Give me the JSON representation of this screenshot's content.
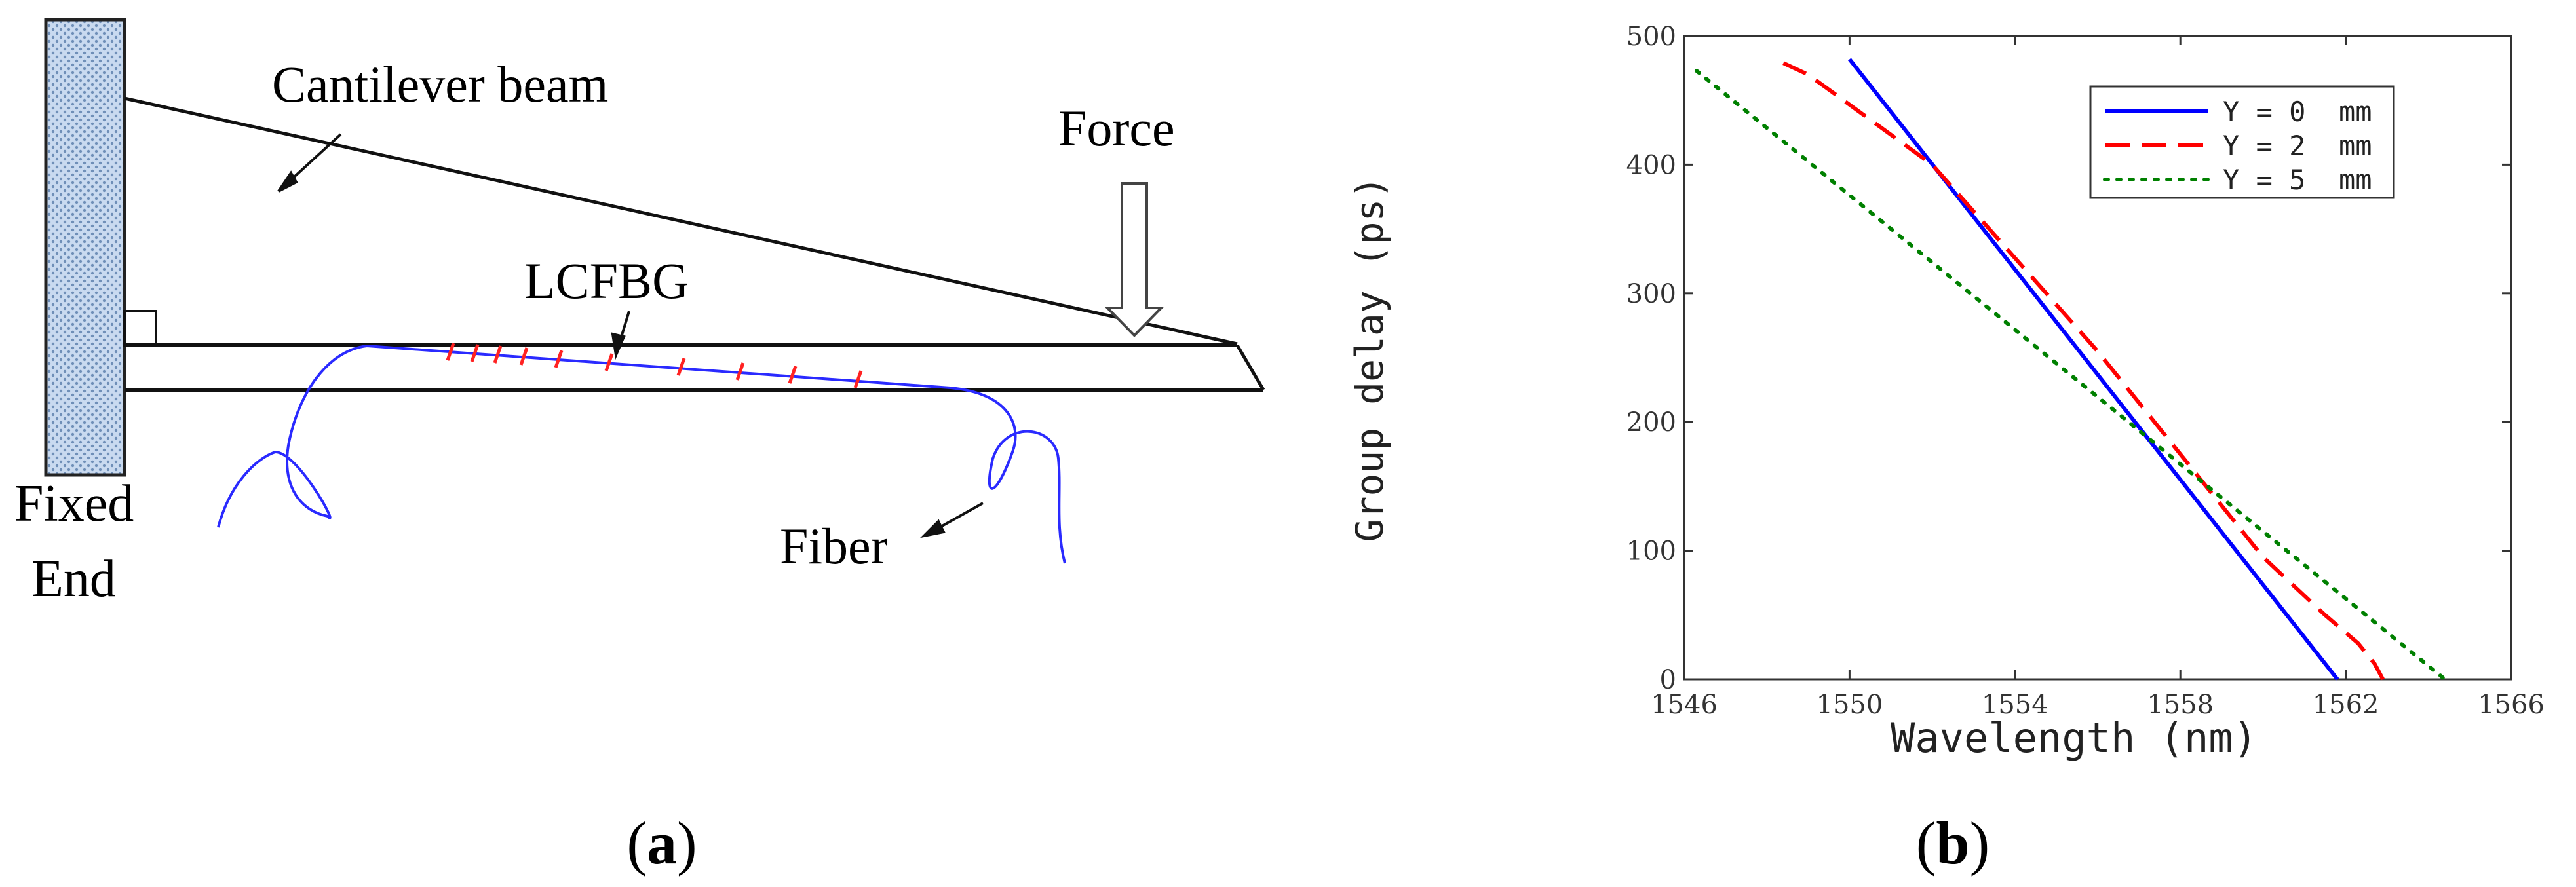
{
  "panel_a": {
    "label": "a",
    "texts": {
      "cantilever": "Cantilever beam",
      "force": "Force",
      "lcfbg": "LCFBG",
      "fixed": "Fixed",
      "end": "End",
      "fiber": "Fiber"
    }
  },
  "panel_b": {
    "label": "b"
  },
  "chart_data": {
    "type": "line",
    "title": "",
    "xlabel": "Wavelength (nm)",
    "ylabel": "Group delay (ps)",
    "xlim": [
      1546,
      1566
    ],
    "ylim": [
      0,
      500
    ],
    "xticks": [
      1546,
      1550,
      1554,
      1558,
      1562,
      1566
    ],
    "yticks": [
      0,
      100,
      200,
      300,
      400,
      500
    ],
    "legend_position": "top-right",
    "grid": false,
    "series": [
      {
        "name": "Y = 0  mm",
        "color": "#0000ff",
        "dash": "solid",
        "x": [
          1550.0,
          1561.8
        ],
        "y": [
          482,
          0
        ]
      },
      {
        "name": "Y = 2  mm",
        "color": "#ff0000",
        "dash": "dashed",
        "x": [
          1548.4,
          1549.0,
          1552.0,
          1556.0,
          1560.0,
          1561.5,
          1562.3,
          1562.7,
          1562.9
        ],
        "y": [
          479,
          470,
          400,
          255,
          95,
          50,
          28,
          12,
          0
        ]
      },
      {
        "name": "Y = 5  mm",
        "color": "#008000",
        "dash": "dotted",
        "x": [
          1546.3,
          1564.4
        ],
        "y": [
          473,
          0
        ]
      }
    ]
  }
}
